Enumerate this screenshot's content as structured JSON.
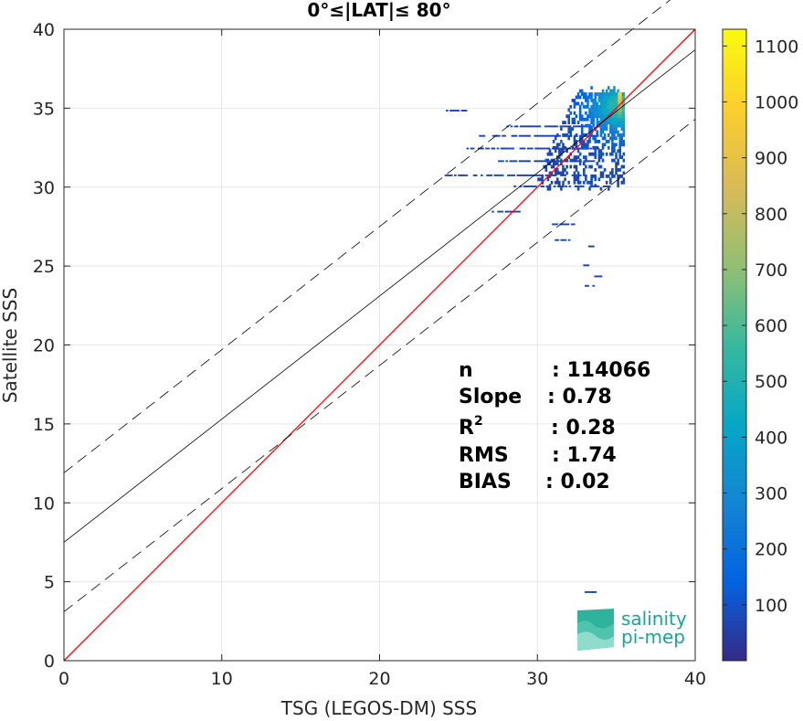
{
  "chart_data": {
    "type": "heatmap",
    "title": "0°≤|LAT|≤ 80°",
    "xlabel": "TSG (LEGOS-DM) SSS",
    "ylabel": "Satellite SSS",
    "xlim": [
      0,
      40
    ],
    "ylim": [
      0,
      40
    ],
    "xticks": [
      0,
      10,
      20,
      30,
      40
    ],
    "yticks": [
      0,
      5,
      10,
      15,
      20,
      25,
      30,
      35,
      40
    ],
    "grid": true,
    "colorbar": {
      "range": [
        0,
        1130
      ],
      "ticks": [
        100,
        200,
        300,
        400,
        500,
        600,
        700,
        800,
        900,
        1000,
        1100
      ],
      "colormap": "parula"
    },
    "lines": [
      {
        "kind": "one-to-one",
        "color": "#ff0000",
        "slope": 1.0,
        "intercept": 0.0
      },
      {
        "kind": "regression",
        "color": "#000000",
        "slope": 0.78,
        "intercept": 7.5
      },
      {
        "kind": "upper-bound",
        "color": "#000000",
        "style": "dashed",
        "slope": 0.78,
        "intercept": 11.9
      },
      {
        "kind": "lower-bound",
        "color": "#000000",
        "style": "dashed",
        "slope": 0.78,
        "intercept": 3.1
      }
    ],
    "density": {
      "core": {
        "x_range": [
          30,
          35.5
        ],
        "y_range": [
          29.8,
          36.3
        ],
        "peak": [
          35.2,
          35.0
        ]
      },
      "streaks": [
        {
          "y": 34.8,
          "x_range": [
            24.2,
            25.5
          ]
        },
        {
          "y": 33.8,
          "x_range": [
            27.8,
            33.5
          ]
        },
        {
          "y": 33.2,
          "x_range": [
            26.3,
            33.8
          ]
        },
        {
          "y": 32.4,
          "x_range": [
            25.5,
            34.0
          ]
        },
        {
          "y": 31.6,
          "x_range": [
            27.5,
            33.6
          ]
        },
        {
          "y": 30.7,
          "x_range": [
            24.0,
            33.0
          ]
        },
        {
          "y": 30.0,
          "x_range": [
            28.5,
            34.5
          ]
        },
        {
          "y": 28.4,
          "x_range": [
            27.1,
            29.0
          ]
        },
        {
          "y": 27.6,
          "x_range": [
            30.8,
            32.3
          ]
        },
        {
          "y": 26.6,
          "x_range": [
            31.1,
            32.3
          ]
        },
        {
          "y": 26.2,
          "x_range": [
            33.1,
            33.6
          ]
        },
        {
          "y": 25.0,
          "x_range": [
            32.9,
            33.3
          ]
        },
        {
          "y": 24.3,
          "x_range": [
            33.6,
            34.0
          ]
        },
        {
          "y": 23.7,
          "x_range": [
            33.0,
            33.5
          ]
        },
        {
          "y": 4.3,
          "x_range": [
            33.0,
            33.7
          ]
        }
      ]
    },
    "stats": [
      {
        "label": "n",
        "value": ": 114066"
      },
      {
        "label": "Slope",
        "value": ": 0.78"
      },
      {
        "label": "R2",
        "value": ": 0.28"
      },
      {
        "label": "RMS",
        "value": ": 1.74"
      },
      {
        "label": "BIAS",
        "value": ": 0.02"
      }
    ]
  },
  "logo": {
    "line1": "salinity",
    "line2": "pi-mep"
  }
}
